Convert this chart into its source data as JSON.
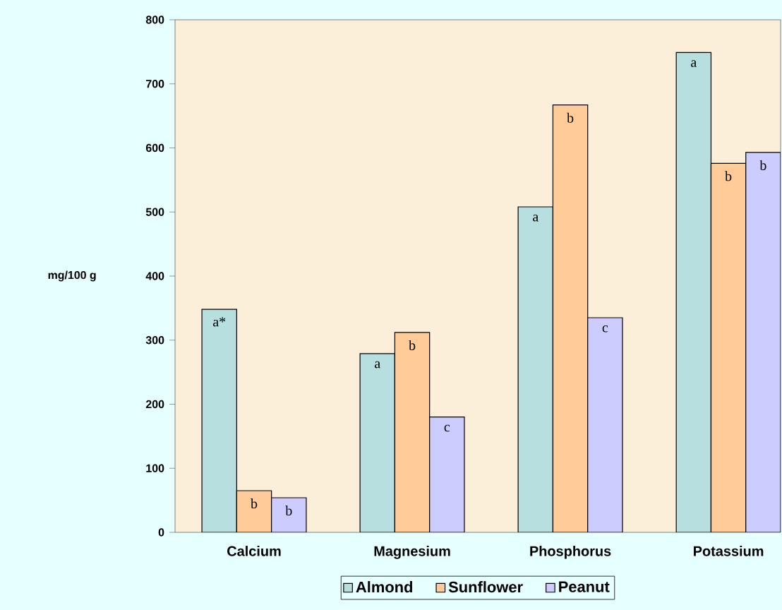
{
  "chart_data": {
    "type": "bar",
    "ylabel": "mg/100 g",
    "categories": [
      "Calcium",
      "Magnesium",
      "Phosphorus",
      "Potassium"
    ],
    "series": [
      {
        "name": "Almond",
        "color": "#b8dfe0",
        "values": [
          348,
          279,
          508,
          749
        ],
        "value_labels": [
          "a*",
          "a",
          "a",
          "a"
        ]
      },
      {
        "name": "Sunflower",
        "color": "#ffcc99",
        "values": [
          65,
          312,
          667,
          576
        ],
        "value_labels": [
          "b",
          "b",
          "b",
          "b"
        ]
      },
      {
        "name": "Peanut",
        "color": "#ccccff",
        "values": [
          54,
          180,
          335,
          593
        ],
        "value_labels": [
          "b",
          "c",
          "c",
          "b"
        ]
      }
    ],
    "ylim": [
      0,
      800
    ],
    "yticks": [
      0,
      100,
      200,
      300,
      400,
      500,
      600,
      700,
      800
    ],
    "grid": false,
    "legend": "bottom"
  }
}
